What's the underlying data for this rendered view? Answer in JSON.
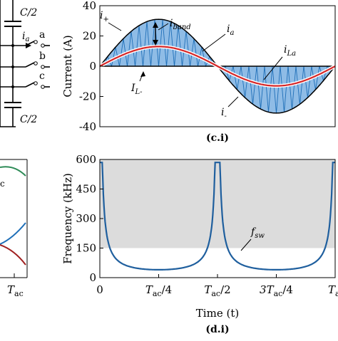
{
  "chart_data": [
    {
      "type": "line",
      "caption": "(c.i)",
      "xlabel": "",
      "ylabel": "Current (A)",
      "ylim": [
        -40,
        40
      ],
      "yticks": [
        -40,
        -20,
        0,
        20,
        40
      ],
      "grid": false,
      "series": [
        {
          "name": "i+",
          "values": [
            0,
            31,
            0
          ],
          "x": [
            "0",
            "T/4",
            "T/2"
          ]
        },
        {
          "name": "ia",
          "amplitude": 13
        },
        {
          "name": "iLa",
          "amplitude": 13
        },
        {
          "name": "i-",
          "values": [
            0,
            -31,
            0
          ]
        }
      ],
      "annotations": [
        "i+",
        "iband",
        "ia",
        "iLa",
        "IL-",
        "i-"
      ]
    },
    {
      "type": "line",
      "caption": "(d.i)",
      "xlabel": "Time (t)",
      "ylabel": "Frequency (kHz)",
      "ylim": [
        0,
        600
      ],
      "yticks": [
        0,
        150,
        300,
        450,
        600
      ],
      "xticks": [
        "0",
        "Tac/4",
        "Tac/2",
        "3Tac/4",
        "Tac"
      ],
      "shaded_band": [
        150,
        600
      ],
      "grid": false,
      "series": [
        {
          "name": "fsw",
          "x": [
            0,
            0.05,
            0.1,
            0.15,
            0.2,
            0.25,
            0.3,
            0.35,
            0.4,
            0.45,
            0.5
          ],
          "values": [
            585,
            260,
            150,
            92,
            55,
            40,
            55,
            92,
            150,
            260,
            585
          ]
        }
      ]
    }
  ],
  "labels": {
    "c_half_top": "C/2",
    "c_half_bottom": "C/2",
    "ia_label": "i",
    "ia_sub": "a",
    "node_a": "a",
    "node_b": "b",
    "node_c": "c",
    "left_c_label": "c",
    "left_tac_main": "T",
    "left_tac_sub": "ac",
    "ann_iplus_main": "i",
    "ann_iplus_sub": "+",
    "ann_iband_main": "i",
    "ann_iband_sub": "band",
    "ann_ia_main": "i",
    "ann_ia_sub": "a",
    "ann_ila_main": "i",
    "ann_ila_sub": "La",
    "ann_ilminus_main": "I",
    "ann_ilminus_sub": "L-",
    "ann_iminus_main": "i",
    "ann_iminus_sub": "-",
    "ann_fsw_main": "f",
    "ann_fsw_sub": "sw"
  },
  "colors": {
    "band_fill": "#8fbce6",
    "band_lines": "#1f6fb8",
    "ia_red": "#d62728",
    "fsw_blue": "#1f5f9e",
    "shade_gray": "#dcdcdc",
    "green": "#2e8b57",
    "darkred": "#a02020"
  }
}
